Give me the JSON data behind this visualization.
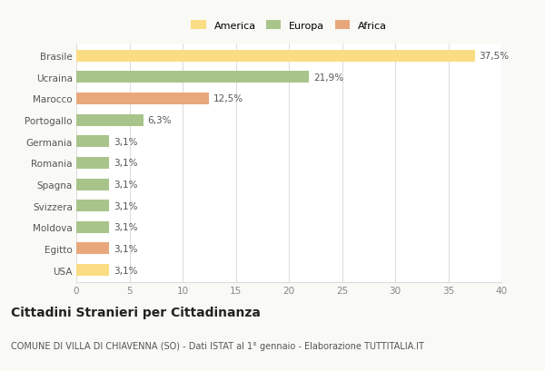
{
  "categories": [
    "Brasile",
    "Ucraina",
    "Marocco",
    "Portogallo",
    "Germania",
    "Romania",
    "Spagna",
    "Svizzera",
    "Moldova",
    "Egitto",
    "USA"
  ],
  "values": [
    37.5,
    21.9,
    12.5,
    6.3,
    3.1,
    3.1,
    3.1,
    3.1,
    3.1,
    3.1,
    3.1
  ],
  "labels": [
    "37,5%",
    "21,9%",
    "12,5%",
    "6,3%",
    "3,1%",
    "3,1%",
    "3,1%",
    "3,1%",
    "3,1%",
    "3,1%",
    "3,1%"
  ],
  "colors": [
    "#FADC82",
    "#A8C48A",
    "#E8A87C",
    "#A8C48A",
    "#A8C48A",
    "#A8C48A",
    "#A8C48A",
    "#A8C48A",
    "#A8C48A",
    "#E8A87C",
    "#FADC82"
  ],
  "legend_labels": [
    "America",
    "Europa",
    "Africa"
  ],
  "legend_colors": [
    "#FADC82",
    "#A8C48A",
    "#E8A87C"
  ],
  "title": "Cittadini Stranieri per Cittadinanza",
  "subtitle": "COMUNE DI VILLA DI CHIAVENNA (SO) - Dati ISTAT al 1° gennaio - Elaborazione TUTTITALIA.IT",
  "xlim": [
    0,
    40
  ],
  "xticks": [
    0,
    5,
    10,
    15,
    20,
    25,
    30,
    35,
    40
  ],
  "bg_color": "#f9f9f6",
  "plot_bg": "#ffffff",
  "grid_color": "#dddddd",
  "bar_height": 0.55,
  "label_fontsize": 7.5,
  "tick_fontsize": 7.5,
  "ytick_fontsize": 7.5,
  "title_fontsize": 10,
  "subtitle_fontsize": 7,
  "legend_fontsize": 8
}
